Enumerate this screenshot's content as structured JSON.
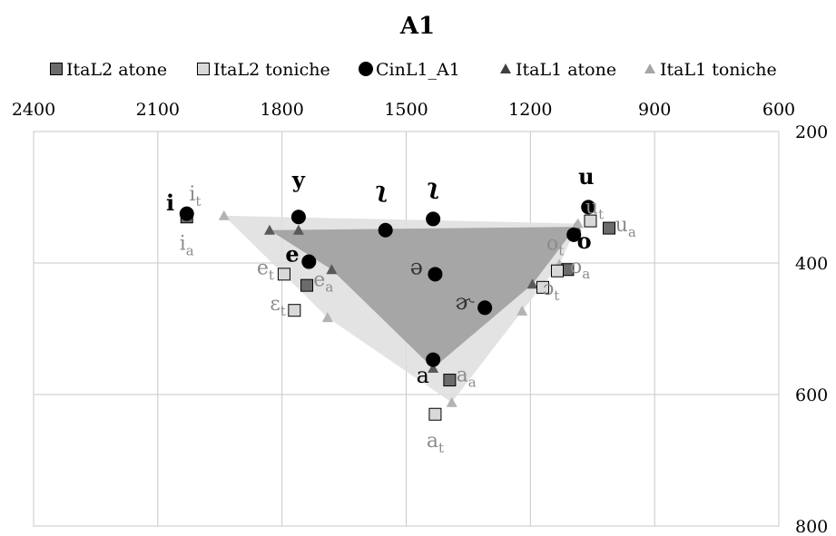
{
  "chart_data": {
    "type": "scatter",
    "title": "A1",
    "xlabel": "",
    "ylabel": "",
    "x_axis": {
      "min": 600,
      "max": 2400,
      "reversed": true,
      "position": "top",
      "ticks": [
        2400,
        2100,
        1800,
        1500,
        1200,
        900,
        600
      ]
    },
    "y_axis": {
      "min": 200,
      "max": 800,
      "reversed": true,
      "position": "right",
      "ticks": [
        200,
        400,
        600,
        800
      ]
    },
    "grid": true,
    "legend_position": "top",
    "series": [
      {
        "name": "ItaL2 atone",
        "marker": "square",
        "color": "#6b6b6b",
        "points": [
          {
            "x": 2030,
            "y": 330
          },
          {
            "x": 1740,
            "y": 434
          },
          {
            "x": 1395,
            "y": 578
          },
          {
            "x": 1110,
            "y": 410
          },
          {
            "x": 1010,
            "y": 347
          }
        ]
      },
      {
        "name": "ItaL2 toniche",
        "marker": "square",
        "color": "#d9d9d9",
        "points": [
          {
            "x": 1795,
            "y": 417
          },
          {
            "x": 1770,
            "y": 472
          },
          {
            "x": 1430,
            "y": 630
          },
          {
            "x": 1170,
            "y": 437
          },
          {
            "x": 1135,
            "y": 412
          },
          {
            "x": 1055,
            "y": 336
          }
        ]
      },
      {
        "name": "CinL1_A1",
        "marker": "circle",
        "color": "#000000",
        "points": [
          {
            "x": 2030,
            "y": 325
          },
          {
            "x": 1760,
            "y": 330
          },
          {
            "x": 1735,
            "y": 398
          },
          {
            "x": 1550,
            "y": 350
          },
          {
            "x": 1435,
            "y": 333
          },
          {
            "x": 1430,
            "y": 417
          },
          {
            "x": 1310,
            "y": 468
          },
          {
            "x": 1435,
            "y": 547
          },
          {
            "x": 1060,
            "y": 315
          },
          {
            "x": 1095,
            "y": 357
          }
        ]
      },
      {
        "name": "ItaL1 atone",
        "marker": "triangle",
        "color": "#595959",
        "points": [
          {
            "x": 1830,
            "y": 350
          },
          {
            "x": 1760,
            "y": 350
          },
          {
            "x": 1680,
            "y": 410
          },
          {
            "x": 1435,
            "y": 560
          },
          {
            "x": 1195,
            "y": 432
          },
          {
            "x": 1090,
            "y": 345
          }
        ]
      },
      {
        "name": "ItaL1 toniche",
        "marker": "triangle",
        "color": "#b3b3b3",
        "points": [
          {
            "x": 1940,
            "y": 328
          },
          {
            "x": 1690,
            "y": 483
          },
          {
            "x": 1390,
            "y": 612
          },
          {
            "x": 1220,
            "y": 473
          },
          {
            "x": 1130,
            "y": 402
          },
          {
            "x": 1085,
            "y": 340
          }
        ]
      }
    ],
    "areas": [
      {
        "series": "ItaL1 toniche",
        "color": "#dedede",
        "points": [
          [
            1940,
            328
          ],
          [
            1085,
            340
          ],
          [
            1130,
            402
          ],
          [
            1220,
            473
          ],
          [
            1390,
            612
          ],
          [
            1690,
            483
          ]
        ]
      },
      {
        "series": "ItaL1 atone",
        "color": "#9b9b9b",
        "points": [
          [
            1830,
            350
          ],
          [
            1090,
            345
          ],
          [
            1195,
            432
          ],
          [
            1435,
            560
          ],
          [
            1680,
            410
          ]
        ]
      }
    ],
    "annotations": [
      {
        "text": "i",
        "x": 2070,
        "y": 320,
        "size": 24,
        "color": "#000000",
        "bold": true
      },
      {
        "text": "i",
        "sub": "t",
        "x": 2010,
        "y": 305,
        "size": 22,
        "color": "#8c8c8c"
      },
      {
        "text": "i",
        "sub": "a",
        "x": 2030,
        "y": 380,
        "size": 22,
        "color": "#8c8c8c"
      },
      {
        "text": "y",
        "x": 1760,
        "y": 285,
        "size": 24,
        "color": "#000000",
        "bold": true
      },
      {
        "text": "e",
        "x": 1775,
        "y": 398,
        "size": 24,
        "color": "#000000",
        "bold": true
      },
      {
        "text": "e",
        "sub": "t",
        "x": 1840,
        "y": 417,
        "size": 22,
        "color": "#8c8c8c"
      },
      {
        "text": "e",
        "sub": "a",
        "x": 1700,
        "y": 435,
        "size": 22,
        "color": "#8c8c8c"
      },
      {
        "text": "ɛ",
        "sub": "t",
        "x": 1810,
        "y": 472,
        "size": 22,
        "color": "#8c8c8c"
      },
      {
        "text": "ʅ",
        "x": 1560,
        "y": 300,
        "size": 24,
        "color": "#000000",
        "bold": true
      },
      {
        "text": "ʅ",
        "x": 1435,
        "y": 295,
        "size": 24,
        "color": "#000000",
        "bold": true
      },
      {
        "text": "ə",
        "x": 1475,
        "y": 417,
        "size": 24,
        "color": "#333333"
      },
      {
        "text": "ɚ",
        "x": 1360,
        "y": 470,
        "size": 24,
        "color": "#333333"
      },
      {
        "text": "a",
        "x": 1460,
        "y": 582,
        "size": 24,
        "color": "#000000"
      },
      {
        "text": "a",
        "sub": "a",
        "x": 1355,
        "y": 580,
        "size": 22,
        "color": "#8c8c8c"
      },
      {
        "text": "a",
        "sub": "t",
        "x": 1430,
        "y": 680,
        "size": 22,
        "color": "#8c8c8c"
      },
      {
        "text": "u",
        "x": 1065,
        "y": 280,
        "size": 24,
        "color": "#000000",
        "bold": true
      },
      {
        "text": "u",
        "sub": "t",
        "x": 1045,
        "y": 325,
        "size": 22,
        "color": "#8c8c8c"
      },
      {
        "text": "u",
        "sub": "a",
        "x": 970,
        "y": 352,
        "size": 22,
        "color": "#8c8c8c"
      },
      {
        "text": "o",
        "x": 1070,
        "y": 378,
        "size": 24,
        "color": "#000000",
        "bold": true
      },
      {
        "text": "o",
        "sub": "t",
        "x": 1140,
        "y": 380,
        "size": 22,
        "color": "#8c8c8c"
      },
      {
        "text": "o",
        "sub": "a",
        "x": 1080,
        "y": 415,
        "size": 22,
        "color": "#8c8c8c"
      },
      {
        "text": "ɔ",
        "sub": "t",
        "x": 1150,
        "y": 448,
        "size": 22,
        "color": "#8c8c8c"
      }
    ]
  }
}
